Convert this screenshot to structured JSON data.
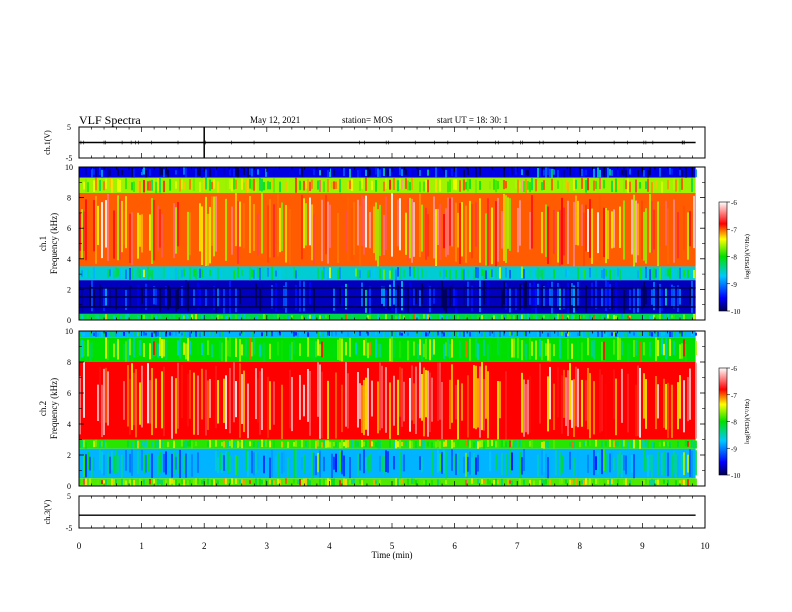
{
  "header": {
    "title": "VLF Spectra",
    "date": "May 12, 2021",
    "station": "station= MOS",
    "start": "start  UT =   18: 30: 1"
  },
  "chart_data": [
    {
      "type": "line",
      "panel": "ch1-voltage",
      "ylabel": "ch.1(V)",
      "ylim": [
        -5,
        5
      ],
      "yticks": [
        "5",
        "-5"
      ],
      "xlim": [
        0,
        10
      ],
      "series": [
        {
          "values": [
            0,
            0
          ]
        }
      ]
    },
    {
      "type": "heatmap",
      "panel": "ch1-spectrogram",
      "ylabel_line1": "ch.1",
      "ylabel_line2": "Frequency (kHz)",
      "ylim": [
        0,
        10
      ],
      "yticks": [
        "0",
        "2",
        "4",
        "6",
        "8",
        "10"
      ],
      "xlim": [
        0,
        9.85
      ],
      "colorbar": {
        "label": "log(PSD)(V²/Hz)",
        "ticks": [
          "-6",
          "-7",
          "-8",
          "-9",
          "-10"
        ],
        "range": [
          -10,
          -6
        ]
      },
      "bands": [
        {
          "from": 9.3,
          "to": 10,
          "level": -9.6
        },
        {
          "from": 8.3,
          "to": 9.3,
          "level": -7.6
        },
        {
          "from": 3.5,
          "to": 8.3,
          "level": -7.0
        },
        {
          "from": 2.6,
          "to": 3.5,
          "level": -8.6
        },
        {
          "from": 0.4,
          "to": 2.6,
          "level": -9.7
        },
        {
          "from": 0,
          "to": 0.4,
          "level": -8.2
        }
      ]
    },
    {
      "type": "heatmap",
      "panel": "ch2-spectrogram",
      "ylabel_line1": "ch.2",
      "ylabel_line2": "Frequency (kHz)",
      "ylim": [
        0,
        10
      ],
      "yticks": [
        "0",
        "2",
        "4",
        "6",
        "8",
        "10"
      ],
      "xlim": [
        0,
        9.85
      ],
      "colorbar": {
        "label": "log(PSD)(V²/Hz)",
        "ticks": [
          "-6",
          "-7",
          "-8",
          "-9",
          "-10"
        ],
        "range": [
          -10,
          -6
        ]
      },
      "bands": [
        {
          "from": 9.6,
          "to": 10,
          "level": -8.8
        },
        {
          "from": 8.0,
          "to": 9.6,
          "level": -8.0
        },
        {
          "from": 3.0,
          "to": 8.0,
          "level": -6.8
        },
        {
          "from": 2.4,
          "to": 3.0,
          "level": -7.9
        },
        {
          "from": 0.5,
          "to": 2.4,
          "level": -8.8
        },
        {
          "from": 0,
          "to": 0.5,
          "level": -7.8
        }
      ]
    },
    {
      "type": "line",
      "panel": "ch3-voltage",
      "ylabel": "ch.3(V)",
      "ylim": [
        -5,
        5
      ],
      "yticks": [
        "5",
        "-5"
      ],
      "xlim": [
        0,
        10
      ],
      "series": [
        {
          "values": [
            -1,
            -1
          ]
        }
      ]
    }
  ],
  "xaxis": {
    "label": "Time  (min)",
    "ticks": [
      "0",
      "1",
      "2",
      "3",
      "4",
      "5",
      "6",
      "7",
      "8",
      "9",
      "10"
    ]
  }
}
